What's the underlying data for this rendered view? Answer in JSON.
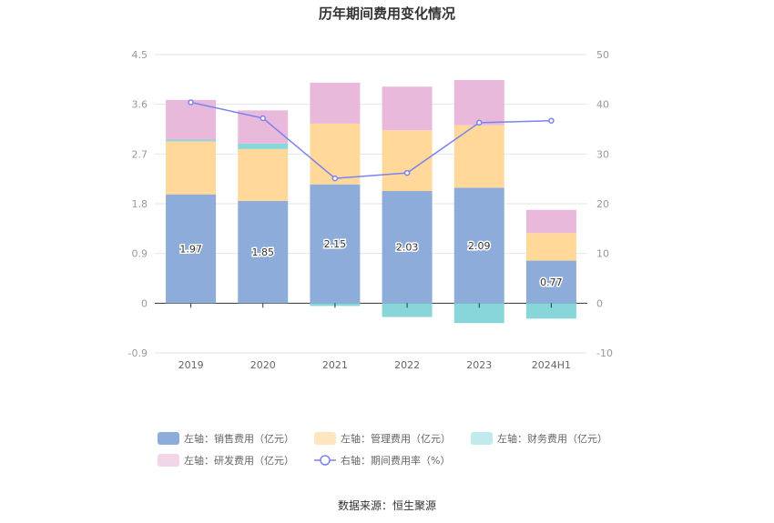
{
  "chart_data": {
    "type": "bar",
    "title": "历年期间费用变化情况",
    "categories": [
      "2019",
      "2020",
      "2021",
      "2022",
      "2023",
      "2024H1"
    ],
    "series": [
      {
        "name": "左轴：销售费用（亿元）",
        "axis": "left",
        "type": "bar",
        "color": "#8eacd9",
        "values": [
          1.97,
          1.85,
          2.15,
          2.03,
          2.09,
          0.77
        ]
      },
      {
        "name": "左轴：管理费用（亿元）",
        "axis": "left",
        "type": "bar",
        "color": "#ffd89a",
        "values": [
          0.96,
          0.94,
          1.1,
          1.1,
          1.13,
          0.5
        ]
      },
      {
        "name": "左轴：财务费用（亿元）",
        "axis": "left",
        "type": "bar",
        "color": "#88d6d9",
        "values": [
          0.03,
          0.1,
          -0.05,
          -0.25,
          -0.36,
          -0.28
        ]
      },
      {
        "name": "左轴：研发费用（亿元）",
        "axis": "left",
        "type": "bar",
        "color": "#e8b9da",
        "values": [
          0.72,
          0.6,
          0.74,
          0.79,
          0.82,
          0.42
        ]
      },
      {
        "name": "右轴：期间费用率（%）",
        "axis": "right",
        "type": "line",
        "color": "#7b83ee",
        "values": [
          40.4,
          37.2,
          25.1,
          26.2,
          36.3,
          36.7
        ]
      }
    ],
    "y_left": {
      "min": -0.9,
      "max": 4.5,
      "ticks": [
        "-0.9",
        "0",
        "0.9",
        "1.8",
        "2.7",
        "3.6",
        "4.5"
      ]
    },
    "y_right": {
      "min": -10,
      "max": 50,
      "ticks": [
        "-10",
        "0",
        "10",
        "20",
        "30",
        "40",
        "50"
      ]
    },
    "data_labels": [
      "1.97",
      "1.85",
      "2.15",
      "2.03",
      "2.09",
      "0.77"
    ],
    "grid": true,
    "legend_position": "bottom"
  },
  "source_text": "数据来源：恒生聚源"
}
